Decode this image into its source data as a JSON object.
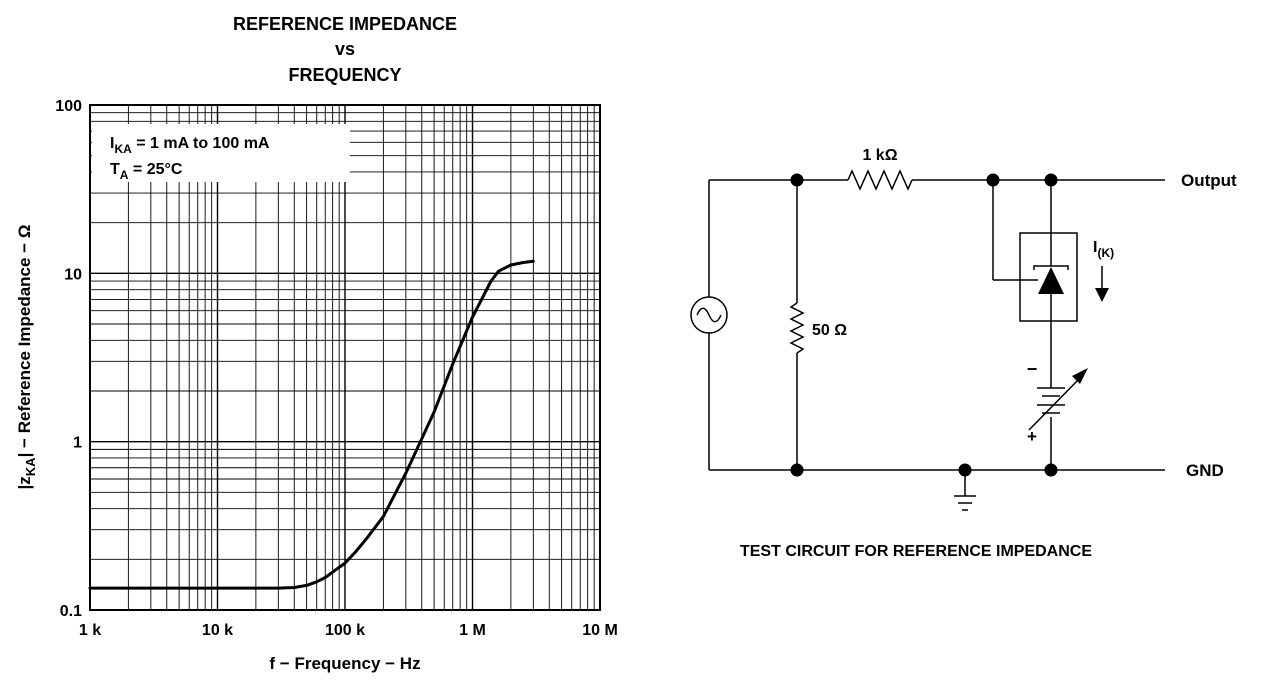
{
  "chart_data": {
    "type": "line",
    "title_lines": [
      "REFERENCE IMPEDANCE",
      "vs",
      "FREQUENCY"
    ],
    "xlabel": "f − Frequency − Hz",
    "ylabel": {
      "prefix": "|z",
      "sub": "KA",
      "suffix": "| − Reference Impedance − Ω"
    },
    "x_scale": "log",
    "y_scale": "log",
    "xlim": [
      1000,
      10000000
    ],
    "ylim": [
      0.1,
      100
    ],
    "x_ticks": [
      {
        "value": 1000,
        "label": "1 k"
      },
      {
        "value": 10000,
        "label": "10 k"
      },
      {
        "value": 100000,
        "label": "100 k"
      },
      {
        "value": 1000000,
        "label": "1 M"
      },
      {
        "value": 10000000,
        "label": "10 M"
      }
    ],
    "y_ticks": [
      {
        "value": 0.1,
        "label": "0.1"
      },
      {
        "value": 1,
        "label": "1"
      },
      {
        "value": 10,
        "label": "10"
      },
      {
        "value": 100,
        "label": "100"
      }
    ],
    "grid": true,
    "annotation": {
      "line1": {
        "prefix": "I",
        "sub": "KA",
        "suffix": " = 1 mA to 100 mA"
      },
      "line2": {
        "prefix": "T",
        "sub": "A",
        "suffix": " = 25°C"
      }
    },
    "series": [
      {
        "x": [
          1000,
          10000,
          30000,
          40000,
          50000,
          60000,
          70000,
          80000,
          100000,
          120000,
          150000,
          200000,
          300000,
          500000,
          700000,
          1000000,
          1400000,
          1600000,
          2000000,
          2500000,
          3000000
        ],
        "y": [
          0.135,
          0.135,
          0.135,
          0.136,
          0.14,
          0.147,
          0.156,
          0.168,
          0.19,
          0.22,
          0.27,
          0.36,
          0.65,
          1.5,
          2.9,
          5.5,
          9.0,
          10.3,
          11.2,
          11.6,
          11.8
        ]
      }
    ]
  },
  "circuit": {
    "resistor_top_label": "1 kΩ",
    "resistor_shunt_label": "50 Ω",
    "output_label": "Output",
    "gnd_label": "GND",
    "current_label": {
      "prefix": "I",
      "sub": "(K)"
    },
    "minus_label": "−",
    "plus_label": "+",
    "caption": "TEST CIRCUIT FOR REFERENCE IMPEDANCE"
  }
}
